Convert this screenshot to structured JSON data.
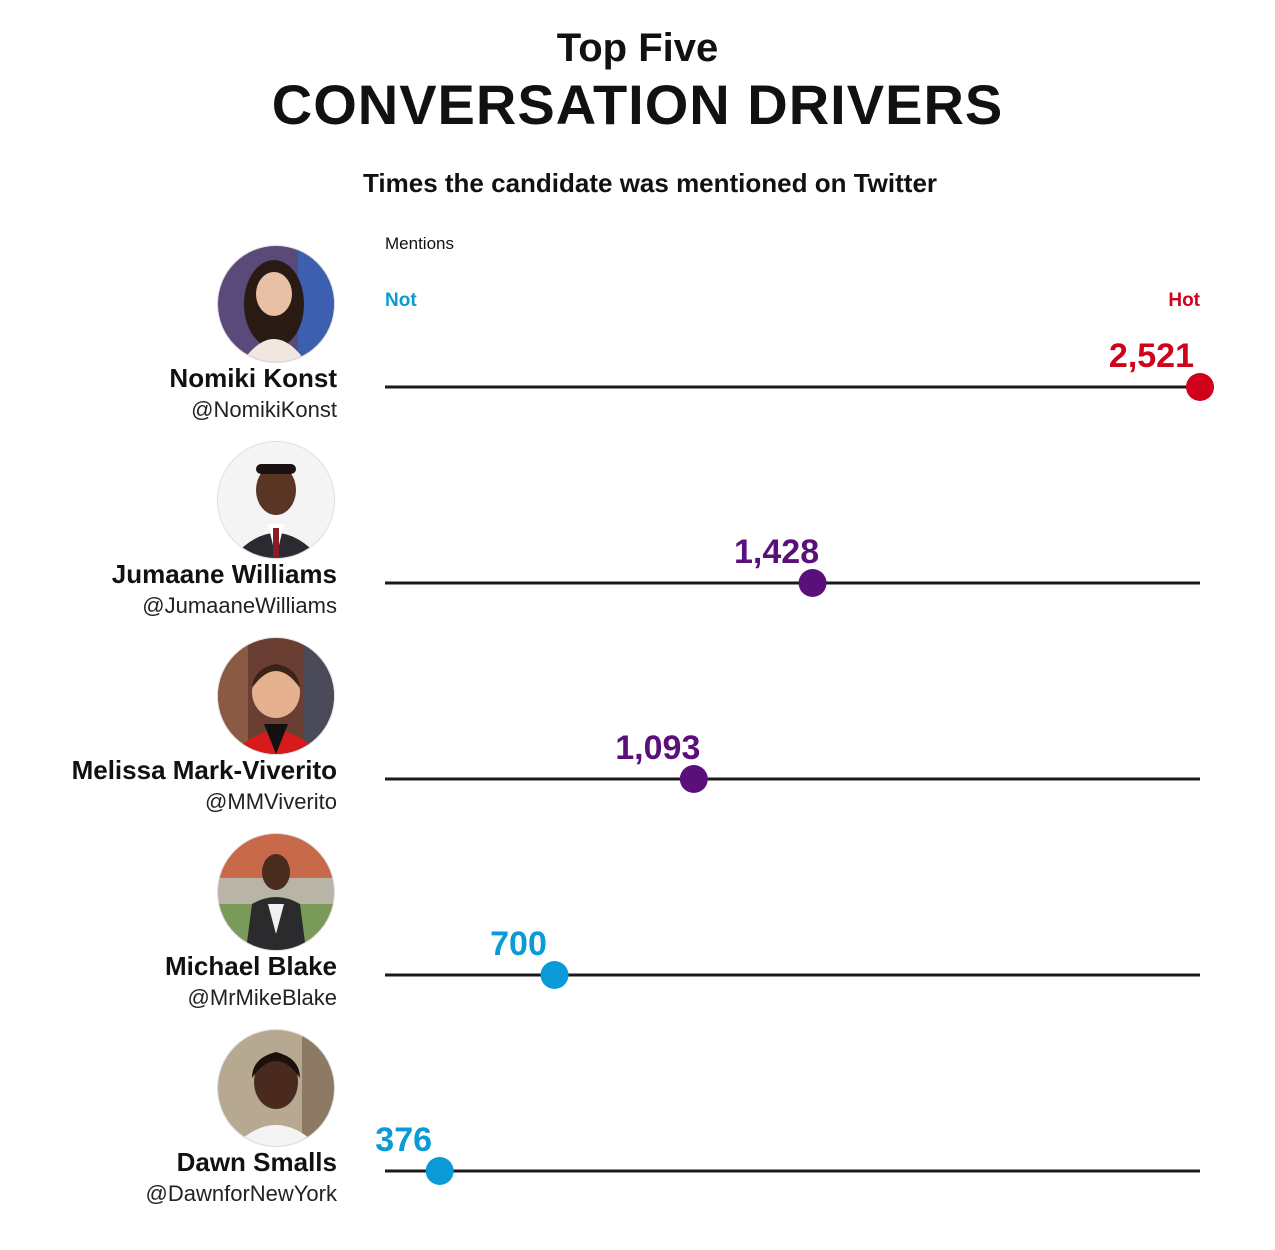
{
  "header": {
    "title_top": "Top Five",
    "title_main": "CONVERSATION DRIVERS",
    "subtitle": "Times the candidate was mentioned on Twitter"
  },
  "axis": {
    "label": "Mentions",
    "low_label": "Not",
    "high_label": "Hot"
  },
  "colors": {
    "hot": "#d0021b",
    "mid": "#5b0f7a",
    "not": "#0a9ad7",
    "line": "#1a1a1a"
  },
  "candidates": [
    {
      "name": "Nomiki Konst",
      "handle": "@NomikiKonst",
      "mentions": 2521,
      "label": "2,521",
      "level": "hot",
      "icon": "nomiki-konst-photo"
    },
    {
      "name": "Jumaane Williams",
      "handle": "@JumaaneWilliams",
      "mentions": 1428,
      "label": "1,428",
      "level": "mid",
      "icon": "jumaane-williams-photo"
    },
    {
      "name": "Melissa Mark-Viverito",
      "handle": "@MMViverito",
      "mentions": 1093,
      "label": "1,093",
      "level": "mid",
      "icon": "melissa-mark-viverito-photo"
    },
    {
      "name": "Michael Blake",
      "handle": "@MrMikeBlake",
      "mentions": 700,
      "label": "700",
      "level": "not",
      "icon": "michael-blake-photo"
    },
    {
      "name": "Dawn Smalls",
      "handle": "@DawnforNewYork",
      "mentions": 376,
      "label": "376",
      "level": "not",
      "icon": "dawn-smalls-photo"
    }
  ],
  "chart_data": {
    "type": "scatter",
    "title": "Top Five CONVERSATION DRIVERS",
    "subtitle": "Times the candidate was mentioned on Twitter",
    "xlabel": "Mentions",
    "categories": [
      "Nomiki Konst",
      "Jumaane Williams",
      "Melissa Mark-Viverito",
      "Michael Blake",
      "Dawn Smalls"
    ],
    "values": [
      2521,
      1428,
      1093,
      700,
      376
    ],
    "data_labels": [
      "2,521",
      "1,428",
      "1,093",
      "700",
      "376"
    ],
    "xlim": [
      0,
      2521
    ],
    "axis_ends": [
      "Not",
      "Hot"
    ],
    "grid": false
  }
}
